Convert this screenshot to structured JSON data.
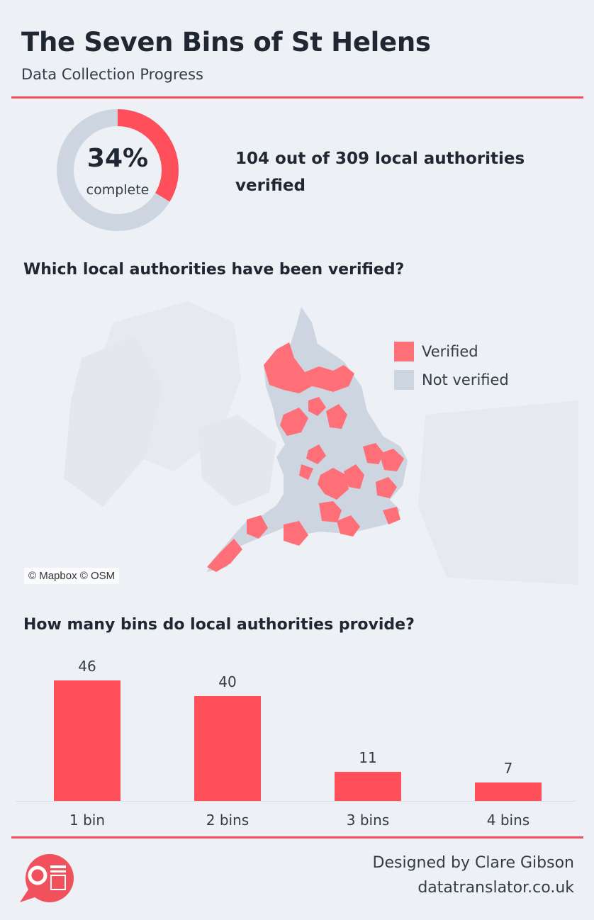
{
  "header": {
    "title": "The Seven Bins of St Helens",
    "subtitle": "Data Collection Progress"
  },
  "progress": {
    "percent_label": "34%",
    "complete_label": "complete",
    "fraction": 0.3366,
    "summary": "104 out of 309 local authorities verified"
  },
  "map_section": {
    "heading": "Which local authorities have been verified?",
    "attribution": "© Mapbox © OSM",
    "legend": [
      {
        "label": "Verified",
        "color": "#ff6f78"
      },
      {
        "label": "Not verified",
        "color": "#cdd5e0"
      }
    ]
  },
  "bins_section": {
    "heading": "How many bins do local authorities provide?"
  },
  "chart_data": {
    "type": "bar",
    "title": "How many bins do local authorities provide?",
    "categories": [
      "1 bin",
      "2 bins",
      "3 bins",
      "4 bins"
    ],
    "values": [
      46,
      40,
      11,
      7
    ],
    "xlabel": "",
    "ylabel": "",
    "ylim": [
      0,
      46
    ],
    "grid": false,
    "bar_color": "#ff4f5b"
  },
  "footer": {
    "credit_line1": "Designed by Clare Gibson",
    "credit_line2": "datatranslator.co.uk"
  },
  "colors": {
    "accent": "#f0515d",
    "donut_track": "#cdd5e0",
    "donut_fill": "#ff4f5b",
    "background": "#edf0f5"
  }
}
